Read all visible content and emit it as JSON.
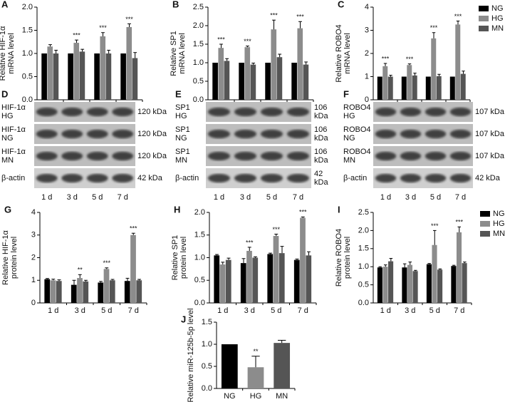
{
  "chart_data": [
    {
      "type": "bar",
      "panel": "A",
      "ylabel": [
        "Relative HIF-1α",
        "mRNA level"
      ],
      "categories": [
        "1 d",
        "3 d",
        "5 d",
        "7 d"
      ],
      "series": [
        {
          "name": "NG",
          "color": "#000000",
          "values": [
            1,
            1,
            1,
            1
          ],
          "errors": [
            0,
            0,
            0,
            0
          ]
        },
        {
          "name": "HG",
          "color": "#8c8c8c",
          "values": [
            1.15,
            1.23,
            1.37,
            1.57
          ],
          "errors": [
            0.04,
            0.06,
            0.08,
            0.07
          ],
          "significance": [
            null,
            "***",
            "***",
            "***"
          ]
        },
        {
          "name": "MN",
          "color": "#555555",
          "values": [
            1.0,
            1.04,
            1.0,
            0.9
          ],
          "errors": [
            0.07,
            0.05,
            0.07,
            0.12
          ]
        }
      ],
      "ylim": [
        0,
        2
      ],
      "yticks": [
        {
          "value": 0,
          "label": "0.0"
        },
        0.5,
        {
          "value": 1,
          "label": "1.0"
        },
        1.5,
        {
          "value": 2,
          "label": "2.0"
        }
      ]
    },
    {
      "type": "bar",
      "panel": "B",
      "ylabel": [
        "Relative SP1",
        "mRNA level"
      ],
      "categories": [
        "1 d",
        "3 d",
        "5 d",
        "7 d"
      ],
      "series": [
        {
          "name": "NG",
          "color": "#000000",
          "values": [
            1,
            1,
            1,
            1
          ],
          "errors": [
            0,
            0,
            0,
            0
          ]
        },
        {
          "name": "HG",
          "color": "#8c8c8c",
          "values": [
            1.4,
            1.42,
            1.9,
            1.93
          ],
          "errors": [
            0.1,
            0.03,
            0.25,
            0.18
          ],
          "significance": [
            "***",
            "***",
            "***",
            "***"
          ]
        },
        {
          "name": "MN",
          "color": "#555555",
          "values": [
            1.05,
            0.95,
            1.15,
            0.95
          ],
          "errors": [
            0.06,
            0.04,
            0.08,
            0.07
          ]
        }
      ],
      "ylim": [
        0,
        2.5
      ],
      "yticks": [
        {
          "value": 0,
          "label": "0.0"
        },
        0.5,
        {
          "value": 1,
          "label": "1.0"
        },
        1.5,
        {
          "value": 2,
          "label": "2.0"
        },
        2.5
      ]
    },
    {
      "type": "bar",
      "panel": "C",
      "ylabel": [
        "Relative ROBO4",
        "mRNA level"
      ],
      "categories": [
        "1 d",
        "3 d",
        "5 d",
        "7 d"
      ],
      "legend": "upper right",
      "series": [
        {
          "name": "NG",
          "color": "#000000",
          "values": [
            1,
            1,
            1,
            1
          ],
          "errors": [
            0,
            0,
            0,
            0
          ]
        },
        {
          "name": "HG",
          "color": "#8c8c8c",
          "values": [
            1.45,
            1.5,
            2.65,
            3.25
          ],
          "errors": [
            0.12,
            0.05,
            0.25,
            0.15
          ],
          "significance": [
            "***",
            "***",
            "***",
            "***"
          ]
        },
        {
          "name": "MN",
          "color": "#555555",
          "values": [
            1.0,
            1.05,
            1.02,
            1.12
          ],
          "errors": [
            0.06,
            0.1,
            0.08,
            0.12
          ]
        }
      ],
      "ylim": [
        0,
        4
      ],
      "yticks": [
        0,
        1,
        2,
        3,
        4
      ]
    },
    {
      "type": "bar",
      "panel": "G",
      "ylabel": [
        "Relative HIF-1α",
        "protein level"
      ],
      "categories": [
        "1 d",
        "3 d",
        "5 d",
        "7 d"
      ],
      "series": [
        {
          "name": "NG",
          "color": "#000000",
          "values": [
            1.05,
            0.8,
            0.9,
            0.97
          ],
          "errors": [
            0.03,
            0.2,
            0.05,
            0.12
          ]
        },
        {
          "name": "HG",
          "color": "#8c8c8c",
          "values": [
            1.0,
            1.1,
            1.5,
            3.0
          ],
          "errors": [
            0.05,
            0.15,
            0.05,
            0.08
          ],
          "significance": [
            null,
            "**",
            "***",
            "***"
          ]
        },
        {
          "name": "MN",
          "color": "#555555",
          "values": [
            0.97,
            0.95,
            1.0,
            1.0
          ],
          "errors": [
            0.05,
            0.05,
            0.04,
            0.04
          ]
        }
      ],
      "ylim": [
        0,
        4
      ],
      "yticks": [
        0,
        1,
        2,
        3,
        4
      ]
    },
    {
      "type": "bar",
      "panel": "H",
      "ylabel": [
        "Relative SP1",
        "protein level"
      ],
      "categories": [
        "1 d",
        "3 d",
        "5 d",
        "7 d"
      ],
      "series": [
        {
          "name": "NG",
          "color": "#000000",
          "values": [
            1.05,
            0.88,
            1.08,
            0.95
          ],
          "errors": [
            0.02,
            0.1,
            0.02,
            0.02
          ]
        },
        {
          "name": "HG",
          "color": "#8c8c8c",
          "values": [
            0.85,
            1.15,
            1.48,
            1.88
          ],
          "errors": [
            0.05,
            0.08,
            0.04,
            0.02
          ],
          "significance": [
            null,
            "***",
            "***",
            "***"
          ]
        },
        {
          "name": "MN",
          "color": "#555555",
          "values": [
            0.95,
            1.0,
            1.1,
            1.05
          ],
          "errors": [
            0.04,
            0.02,
            0.15,
            0.08
          ]
        }
      ],
      "ylim": [
        0,
        2
      ],
      "yticks": [
        {
          "value": 0,
          "label": "0.0"
        },
        0.5,
        {
          "value": 1,
          "label": "1.0"
        },
        1.5,
        {
          "value": 2,
          "label": "2.0"
        }
      ]
    },
    {
      "type": "bar",
      "panel": "I",
      "ylabel": [
        "Relative ROBO4",
        "protein level"
      ],
      "categories": [
        "1 d",
        "3 d",
        "5 d",
        "7 d"
      ],
      "legend": "upper right",
      "series": [
        {
          "name": "NG",
          "color": "#000000",
          "values": [
            0.98,
            0.98,
            1.07,
            1.02
          ],
          "errors": [
            0.02,
            0.1,
            0.02,
            0.02
          ]
        },
        {
          "name": "HG",
          "color": "#8c8c8c",
          "values": [
            1.0,
            1.05,
            1.6,
            1.95
          ],
          "errors": [
            0.05,
            0.08,
            0.4,
            0.15
          ],
          "significance": [
            null,
            null,
            "***",
            "***"
          ]
        },
        {
          "name": "MN",
          "color": "#555555",
          "values": [
            1.15,
            0.88,
            0.92,
            1.1
          ],
          "errors": [
            0.08,
            0.02,
            0.02,
            0.03
          ]
        }
      ],
      "ylim": [
        0,
        2.5
      ],
      "yticks": [
        {
          "value": 0,
          "label": "0.0"
        },
        0.5,
        {
          "value": 1,
          "label": "1.0"
        },
        1.5,
        {
          "value": 2,
          "label": "2.0"
        },
        2.5
      ]
    },
    {
      "type": "bar",
      "panel": "J",
      "ylabel": [
        "Relative miR-125b-5p level"
      ],
      "categories": [
        "NG",
        "HG",
        "MN"
      ],
      "values": [
        1.0,
        0.48,
        1.03
      ],
      "errors": [
        0,
        0.25,
        0.06
      ],
      "colors": [
        "#000000",
        "#8c8c8c",
        "#555555"
      ],
      "significance": [
        null,
        "**",
        null
      ],
      "ylim": [
        0,
        1.5
      ],
      "yticks": [
        {
          "value": 0,
          "label": "0.0"
        },
        0.5,
        {
          "value": 1,
          "label": "1.0"
        },
        1.5
      ]
    }
  ],
  "blots": [
    {
      "panel": "D",
      "lanes": [
        "1 d",
        "3 d",
        "5 d",
        "7 d"
      ],
      "rows": [
        {
          "label": [
            "HIF-1α",
            "HG"
          ],
          "size": [
            "120 kDa"
          ]
        },
        {
          "label": [
            "HIF-1α",
            "NG"
          ],
          "size": [
            "120 kDa"
          ]
        },
        {
          "label": [
            "HIF-1α",
            "MN"
          ],
          "size": [
            "120 kDa"
          ]
        },
        {
          "label": [
            "β-actin"
          ],
          "size": [
            "42 kDa"
          ]
        }
      ]
    },
    {
      "panel": "E",
      "lanes": [
        "1 d",
        "3 d",
        "5 d",
        "7 d"
      ],
      "rows": [
        {
          "label": [
            "SP1",
            "HG"
          ],
          "size": [
            "106",
            "kDa"
          ]
        },
        {
          "label": [
            "SP1",
            "NG"
          ],
          "size": [
            "106",
            "kDa"
          ]
        },
        {
          "label": [
            "SP1",
            "MN"
          ],
          "size": [
            "106",
            "kDa"
          ]
        },
        {
          "label": [
            "β-actin"
          ],
          "size": [
            "42",
            "kDa"
          ]
        }
      ]
    },
    {
      "panel": "F",
      "lanes": [
        "1 d",
        "3 d",
        "5 d",
        "7 d"
      ],
      "rows": [
        {
          "label": [
            "ROBO4",
            "HG"
          ],
          "size": [
            "107 kDa"
          ]
        },
        {
          "label": [
            "ROBO4",
            "NG"
          ],
          "size": [
            "107 kDa"
          ]
        },
        {
          "label": [
            "ROBO4",
            "MN"
          ],
          "size": [
            "107 kDa"
          ]
        },
        {
          "label": [
            "β-actin"
          ],
          "size": [
            "42 kDa"
          ]
        }
      ]
    }
  ]
}
